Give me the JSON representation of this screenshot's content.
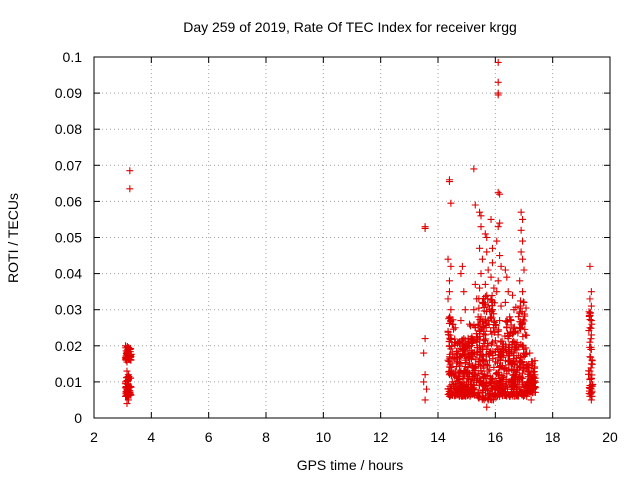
{
  "chart_data": {
    "type": "scatter",
    "title": "Day 259 of 2019, Rate Of TEC Index for receiver krgg",
    "xlabel": "GPS time / hours",
    "ylabel": "ROTI / TECUs",
    "xlim": [
      2,
      20
    ],
    "ylim": [
      0,
      0.1
    ],
    "grid": true,
    "marker": "+",
    "colors": {
      "series": "#e00000",
      "grid": "#a0a0a0",
      "axis": "#000000",
      "background": "#ffffff"
    },
    "x_ticks": [
      {
        "value": 2,
        "label": "2"
      },
      {
        "value": 4,
        "label": "4"
      },
      {
        "value": 6,
        "label": "6"
      },
      {
        "value": 8,
        "label": "8"
      },
      {
        "value": 10,
        "label": "10"
      },
      {
        "value": 12,
        "label": "12"
      },
      {
        "value": 14,
        "label": "14"
      },
      {
        "value": 16,
        "label": "16"
      },
      {
        "value": 18,
        "label": "18"
      },
      {
        "value": 20,
        "label": "20"
      }
    ],
    "y_ticks": [
      {
        "value": 0,
        "label": "0"
      },
      {
        "value": 0.01,
        "label": "0.01"
      },
      {
        "value": 0.02,
        "label": "0.02"
      },
      {
        "value": 0.03,
        "label": "0.03"
      },
      {
        "value": 0.04,
        "label": "0.04"
      },
      {
        "value": 0.05,
        "label": "0.05"
      },
      {
        "value": 0.06,
        "label": "0.06"
      },
      {
        "value": 0.07,
        "label": "0.07"
      },
      {
        "value": 0.08,
        "label": "0.08"
      },
      {
        "value": 0.09,
        "label": "0.09"
      },
      {
        "value": 0.1,
        "label": "0.1"
      }
    ],
    "series": [
      {
        "name": "ROTI",
        "points": [
          [
            3.15,
            0.004
          ],
          [
            3.2,
            0.005
          ],
          [
            3.1,
            0.006
          ],
          [
            3.25,
            0.007
          ],
          [
            3.15,
            0.008
          ],
          [
            3.2,
            0.009
          ],
          [
            3.1,
            0.01
          ],
          [
            3.25,
            0.011
          ],
          [
            3.2,
            0.012
          ],
          [
            3.15,
            0.013
          ],
          [
            3.2,
            0.017
          ],
          [
            3.15,
            0.018
          ],
          [
            3.25,
            0.019
          ],
          [
            3.1,
            0.02
          ],
          [
            3.2,
            0.0195
          ],
          [
            3.15,
            0.0075
          ],
          [
            3.25,
            0.0085
          ],
          [
            3.1,
            0.0095
          ],
          [
            3.2,
            0.0105
          ],
          [
            3.15,
            0.0155
          ],
          [
            3.25,
            0.0685
          ],
          [
            3.25,
            0.0635
          ],
          [
            13.55,
            0.053
          ],
          [
            13.55,
            0.0525
          ],
          [
            13.55,
            0.022
          ],
          [
            13.5,
            0.018
          ],
          [
            13.55,
            0.012
          ],
          [
            13.5,
            0.01
          ],
          [
            13.6,
            0.008
          ],
          [
            13.55,
            0.005
          ],
          [
            14.4,
            0.066
          ],
          [
            14.4,
            0.0655
          ],
          [
            14.45,
            0.0595
          ],
          [
            14.35,
            0.044
          ],
          [
            14.45,
            0.042
          ],
          [
            14.4,
            0.038
          ],
          [
            14.4,
            0.035
          ],
          [
            14.35,
            0.033
          ],
          [
            14.45,
            0.03
          ],
          [
            14.4,
            0.028
          ],
          [
            14.5,
            0.026
          ],
          [
            14.35,
            0.024
          ],
          [
            14.45,
            0.022
          ],
          [
            14.4,
            0.02
          ],
          [
            14.5,
            0.018
          ],
          [
            14.35,
            0.016
          ],
          [
            14.45,
            0.014
          ],
          [
            14.4,
            0.012
          ],
          [
            14.5,
            0.01
          ],
          [
            14.35,
            0.008
          ],
          [
            14.45,
            0.007
          ],
          [
            14.4,
            0.006
          ],
          [
            14.6,
            0.025
          ],
          [
            14.7,
            0.021
          ],
          [
            14.65,
            0.018
          ],
          [
            14.75,
            0.015
          ],
          [
            14.6,
            0.013
          ],
          [
            14.7,
            0.011
          ],
          [
            14.8,
            0.009
          ],
          [
            14.65,
            0.008
          ],
          [
            14.8,
            0.04
          ],
          [
            14.85,
            0.042
          ],
          [
            14.9,
            0.035
          ],
          [
            14.95,
            0.03
          ],
          [
            14.8,
            0.027
          ],
          [
            14.9,
            0.022
          ],
          [
            14.85,
            0.019
          ],
          [
            14.95,
            0.016
          ],
          [
            14.8,
            0.013
          ],
          [
            14.9,
            0.011
          ],
          [
            14.85,
            0.009
          ],
          [
            14.95,
            0.007
          ],
          [
            15.0,
            0.01
          ],
          [
            15.05,
            0.014
          ],
          [
            15.1,
            0.026
          ],
          [
            15.15,
            0.022
          ],
          [
            15.2,
            0.018
          ],
          [
            15.1,
            0.015
          ],
          [
            15.25,
            0.012
          ],
          [
            15.15,
            0.01
          ],
          [
            15.2,
            0.008
          ],
          [
            15.1,
            0.007
          ],
          [
            15.25,
            0.069
          ],
          [
            15.3,
            0.059
          ],
          [
            15.3,
            0.037
          ],
          [
            15.35,
            0.033
          ],
          [
            15.25,
            0.03
          ],
          [
            15.4,
            0.028
          ],
          [
            15.3,
            0.025
          ],
          [
            15.35,
            0.021
          ],
          [
            15.45,
            0.057
          ],
          [
            15.5,
            0.056
          ],
          [
            15.5,
            0.053
          ],
          [
            15.45,
            0.047
          ],
          [
            15.55,
            0.044
          ],
          [
            15.5,
            0.04
          ],
          [
            15.45,
            0.036
          ],
          [
            15.55,
            0.032
          ],
          [
            15.5,
            0.028
          ],
          [
            15.6,
            0.024
          ],
          [
            15.45,
            0.02
          ],
          [
            15.55,
            0.016
          ],
          [
            15.5,
            0.013
          ],
          [
            15.6,
            0.011
          ],
          [
            15.45,
            0.009
          ],
          [
            15.55,
            0.007
          ],
          [
            15.65,
            0.051
          ],
          [
            15.7,
            0.05
          ],
          [
            15.7,
            0.046
          ],
          [
            15.75,
            0.041
          ],
          [
            15.65,
            0.037
          ],
          [
            15.7,
            0.034
          ],
          [
            15.8,
            0.03
          ],
          [
            15.75,
            0.027
          ],
          [
            15.65,
            0.023
          ],
          [
            15.7,
            0.019
          ],
          [
            15.8,
            0.016
          ],
          [
            15.75,
            0.013
          ],
          [
            15.7,
            0.01
          ],
          [
            15.65,
            0.008
          ],
          [
            15.75,
            0.005
          ],
          [
            15.7,
            0.003
          ],
          [
            15.85,
            0.055
          ],
          [
            15.9,
            0.047
          ],
          [
            15.9,
            0.043
          ],
          [
            15.85,
            0.039
          ],
          [
            15.95,
            0.036
          ],
          [
            15.9,
            0.032
          ],
          [
            15.85,
            0.028
          ],
          [
            15.95,
            0.025
          ],
          [
            15.9,
            0.021
          ],
          [
            15.85,
            0.018
          ],
          [
            15.95,
            0.014
          ],
          [
            15.9,
            0.011
          ],
          [
            15.85,
            0.009
          ],
          [
            15.95,
            0.006
          ],
          [
            16.1,
            0.0985
          ],
          [
            16.1,
            0.093
          ],
          [
            16.1,
            0.09
          ],
          [
            16.1,
            0.0895
          ],
          [
            16.1,
            0.0625
          ],
          [
            16.15,
            0.062
          ],
          [
            16.15,
            0.054
          ],
          [
            16.1,
            0.053
          ],
          [
            16.05,
            0.049
          ],
          [
            16.15,
            0.045
          ],
          [
            16.2,
            0.042
          ],
          [
            16.1,
            0.038
          ],
          [
            16.05,
            0.035
          ],
          [
            16.2,
            0.031
          ],
          [
            16.15,
            0.027
          ],
          [
            16.1,
            0.024
          ],
          [
            16.05,
            0.02
          ],
          [
            16.2,
            0.017
          ],
          [
            16.15,
            0.014
          ],
          [
            16.1,
            0.012
          ],
          [
            16.05,
            0.01
          ],
          [
            16.2,
            0.008
          ],
          [
            16.15,
            0.006
          ],
          [
            16.35,
            0.041
          ],
          [
            16.4,
            0.039
          ],
          [
            16.45,
            0.035
          ],
          [
            16.35,
            0.032
          ],
          [
            16.5,
            0.028
          ],
          [
            16.4,
            0.025
          ],
          [
            16.45,
            0.022
          ],
          [
            16.35,
            0.019
          ],
          [
            16.5,
            0.016
          ],
          [
            16.4,
            0.013
          ],
          [
            16.45,
            0.01
          ],
          [
            16.35,
            0.008
          ],
          [
            16.5,
            0.006
          ],
          [
            16.6,
            0.034
          ],
          [
            16.65,
            0.03
          ],
          [
            16.55,
            0.027
          ],
          [
            16.7,
            0.024
          ],
          [
            16.6,
            0.021
          ],
          [
            16.65,
            0.018
          ],
          [
            16.55,
            0.015
          ],
          [
            16.7,
            0.012
          ],
          [
            16.6,
            0.009
          ],
          [
            16.65,
            0.007
          ],
          [
            16.9,
            0.057
          ],
          [
            16.95,
            0.055
          ],
          [
            16.9,
            0.052
          ],
          [
            16.95,
            0.049
          ],
          [
            16.9,
            0.046
          ],
          [
            16.95,
            0.044
          ],
          [
            17.0,
            0.041
          ],
          [
            16.85,
            0.038
          ],
          [
            16.95,
            0.035
          ],
          [
            17.0,
            0.032
          ],
          [
            16.85,
            0.029
          ],
          [
            16.9,
            0.026
          ],
          [
            17.05,
            0.023
          ],
          [
            16.95,
            0.02
          ],
          [
            17.0,
            0.017
          ],
          [
            16.85,
            0.014
          ],
          [
            16.9,
            0.011
          ],
          [
            17.05,
            0.009
          ],
          [
            16.95,
            0.007
          ],
          [
            17.2,
            0.018
          ],
          [
            17.3,
            0.015
          ],
          [
            17.25,
            0.013
          ],
          [
            17.35,
            0.011
          ],
          [
            17.2,
            0.009
          ],
          [
            17.3,
            0.007
          ],
          [
            17.25,
            0.005
          ],
          [
            19.3,
            0.042
          ],
          [
            19.35,
            0.035
          ],
          [
            19.3,
            0.033
          ],
          [
            19.35,
            0.031
          ],
          [
            19.3,
            0.029
          ],
          [
            19.35,
            0.027
          ],
          [
            19.3,
            0.025
          ],
          [
            19.35,
            0.023
          ],
          [
            19.3,
            0.021
          ],
          [
            19.35,
            0.019
          ],
          [
            19.3,
            0.017
          ],
          [
            19.35,
            0.015
          ],
          [
            19.3,
            0.013
          ],
          [
            19.35,
            0.011
          ],
          [
            19.3,
            0.009
          ],
          [
            19.35,
            0.007
          ],
          [
            19.3,
            0.006
          ],
          [
            19.35,
            0.005
          ]
        ],
        "dense_bands": [
          {
            "x": [
              14.35,
              14.55
            ],
            "y": [
              0.006,
              0.028
            ]
          },
          {
            "x": [
              14.55,
              15.0
            ],
            "y": [
              0.006,
              0.022
            ]
          },
          {
            "x": [
              15.0,
              15.4
            ],
            "y": [
              0.006,
              0.026
            ]
          },
          {
            "x": [
              15.4,
              16.0
            ],
            "y": [
              0.005,
              0.034
            ]
          },
          {
            "x": [
              16.0,
              16.3
            ],
            "y": [
              0.006,
              0.026
            ]
          },
          {
            "x": [
              16.3,
              16.7
            ],
            "y": [
              0.006,
              0.028
            ]
          },
          {
            "x": [
              16.7,
              17.1
            ],
            "y": [
              0.006,
              0.033
            ]
          },
          {
            "x": [
              17.1,
              17.4
            ],
            "y": [
              0.007,
              0.016
            ]
          },
          {
            "x": [
              19.25,
              19.4
            ],
            "y": [
              0.006,
              0.03
            ]
          },
          {
            "x": [
              3.1,
              3.3
            ],
            "y": [
              0.006,
              0.012
            ]
          },
          {
            "x": [
              3.1,
              3.3
            ],
            "y": [
              0.016,
              0.02
            ]
          }
        ]
      }
    ]
  }
}
